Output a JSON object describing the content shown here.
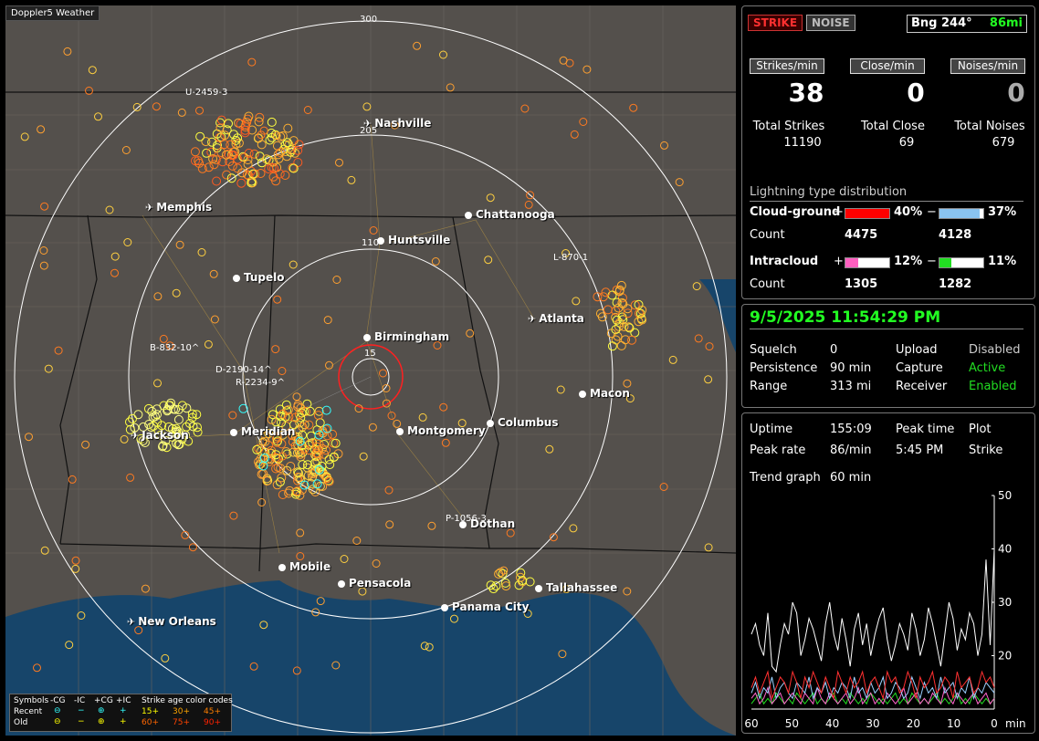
{
  "app": {
    "title": "Doppler5 Weather"
  },
  "map": {
    "ring_labels": [
      "300",
      "205",
      "110",
      "15"
    ],
    "cities": [
      {
        "name": "Nashville",
        "airport": true
      },
      {
        "name": "Memphis",
        "airport": true
      },
      {
        "name": "Chattanooga",
        "airport": false
      },
      {
        "name": "Huntsville",
        "airport": false
      },
      {
        "name": "Tupelo",
        "airport": false
      },
      {
        "name": "Atlanta",
        "airport": true
      },
      {
        "name": "Birmingham",
        "airport": false
      },
      {
        "name": "Macon",
        "airport": false
      },
      {
        "name": "Jackson",
        "airport": true
      },
      {
        "name": "Meridian",
        "airport": false
      },
      {
        "name": "Montgomery",
        "airport": false
      },
      {
        "name": "Columbus",
        "airport": false
      },
      {
        "name": "Dothan",
        "airport": false
      },
      {
        "name": "Mobile",
        "airport": false
      },
      {
        "name": "Pensacola",
        "airport": false
      },
      {
        "name": "Tallahassee",
        "airport": false
      },
      {
        "name": "Panama City",
        "airport": false
      },
      {
        "name": "New Orleans",
        "airport": true
      }
    ],
    "storm_labels": [
      "U-2459-3",
      "L-870-1",
      "B-832-10^",
      "D-2190-14^",
      "R-2234-9^",
      "P-1056-3"
    ]
  },
  "legend": {
    "header": [
      "Symbols",
      "-CG",
      "-IC",
      "+CG",
      "+IC",
      "Strike age color codes"
    ],
    "recent_label": "Recent",
    "old_label": "Old",
    "recent_ages": [
      "15+",
      "30+",
      "45+"
    ],
    "old_ages": [
      "60+",
      "75+",
      "90+"
    ],
    "colors": {
      "15": "#ffff00",
      "30": "#ffa500",
      "45": "#ff7f00",
      "60": "#ff6600",
      "75": "#ff4400",
      "90": "#ff2200"
    }
  },
  "status": {
    "strike_button": "STRIKE",
    "noise_button": "NOISE",
    "bearing_label": "Bng 244°",
    "distance": "86mi",
    "rates": [
      {
        "label": "Strikes/min",
        "value": "38"
      },
      {
        "label": "Close/min",
        "value": "0"
      },
      {
        "label": "Noises/min",
        "value": "0"
      }
    ],
    "totals": [
      {
        "label": "Total Strikes",
        "value": "11190"
      },
      {
        "label": "Total Close",
        "value": "69"
      },
      {
        "label": "Total Noises",
        "value": "679"
      }
    ],
    "distribution_title": "Lightning type distribution",
    "cloud_ground_label": "Cloud-ground",
    "intracloud_label": "Intracloud",
    "count_label": "Count",
    "plus_sign": "+",
    "minus_sign": "−",
    "cg_pos": {
      "percent": "40%",
      "count": "4475",
      "fraction": 0.4,
      "color": "#ff0000"
    },
    "cg_neg": {
      "percent": "37%",
      "count": "4128",
      "fraction": 0.37,
      "color": "#8ac4f0"
    },
    "ic_pos": {
      "percent": "12%",
      "count": "1305",
      "fraction": 0.12,
      "color": "#ff5fc0"
    },
    "ic_neg": {
      "percent": "11%",
      "count": "1282",
      "fraction": 0.11,
      "color": "#22dd22"
    }
  },
  "config": {
    "datetime": "9/5/2025 11:54:29 PM",
    "rows": [
      {
        "k1": "Squelch",
        "v1": "0",
        "k2": "Upload",
        "v2": "Disabled"
      },
      {
        "k1": "Persistence",
        "v1": "90 min",
        "k2": "Capture",
        "v2": "Active"
      },
      {
        "k1": "Range",
        "v1": "313 mi",
        "k2": "Receiver",
        "v2": "Enabled"
      }
    ],
    "colors": {
      "datetime": "#22ff22",
      "active": "#22dd22",
      "disabled": "#cccccc"
    }
  },
  "trend": {
    "uptime_label": "Uptime",
    "uptime_value": "155:09",
    "peak_time_label": "Peak time",
    "peak_time_value": "5:45 PM",
    "plot_label": "Plot",
    "plot_value": "Strike",
    "peak_rate_label": "Peak rate",
    "peak_rate_value": "86/min",
    "trend_label": "Trend graph",
    "trend_value": "60 min"
  },
  "chart_data": {
    "type": "line",
    "x_ticks": [
      "60",
      "50",
      "40",
      "30",
      "20",
      "10",
      "0"
    ],
    "x_unit": "min",
    "y_ticks": [
      "50",
      "40",
      "30",
      "20"
    ],
    "ylim": [
      10,
      50
    ],
    "xlim": [
      60,
      0
    ],
    "series": [
      {
        "color": "#ffffff",
        "values": [
          24,
          26,
          22,
          20,
          28,
          18,
          17,
          22,
          26,
          24,
          30,
          28,
          20,
          23,
          27,
          25,
          22,
          19,
          26,
          30,
          24,
          21,
          27,
          23,
          18,
          25,
          28,
          22,
          26,
          20,
          24,
          27,
          29,
          23,
          19,
          22,
          26,
          24,
          21,
          28,
          25,
          20,
          23,
          29,
          26,
          22,
          18,
          24,
          30,
          27,
          21,
          25,
          23,
          28,
          26,
          20,
          24,
          38,
          22,
          40
        ]
      },
      {
        "color": "#ff3030",
        "values": [
          14,
          16,
          13,
          15,
          17,
          12,
          14,
          16,
          15,
          13,
          17,
          15,
          12,
          16,
          14,
          17,
          15,
          13,
          16,
          14,
          12,
          17,
          15,
          13,
          16,
          14,
          15,
          17,
          13,
          15,
          16,
          14,
          12,
          17,
          15,
          16,
          13,
          14,
          17,
          15,
          12,
          16,
          14,
          15,
          17,
          13,
          14,
          16,
          15,
          12,
          17,
          14,
          15,
          16,
          13,
          14,
          17,
          15,
          16,
          14
        ]
      },
      {
        "color": "#9ad0ff",
        "values": [
          13,
          15,
          12,
          14,
          13,
          16,
          12,
          14,
          15,
          13,
          12,
          15,
          14,
          13,
          16,
          12,
          14,
          13,
          15,
          12,
          14,
          13,
          15,
          14,
          12,
          16,
          13,
          14,
          12,
          15,
          13,
          14,
          16,
          12,
          13,
          15,
          14,
          12,
          13,
          16,
          14,
          12,
          15,
          13,
          14,
          12,
          16,
          13,
          14,
          15,
          12,
          14,
          13,
          16,
          12,
          14,
          13,
          15,
          14,
          13
        ]
      },
      {
        "color": "#ff66cc",
        "values": [
          12,
          13,
          11,
          12,
          14,
          11,
          12,
          13,
          11,
          12,
          13,
          12,
          11,
          13,
          12,
          11,
          14,
          12,
          11,
          13,
          12,
          11,
          12,
          13,
          11,
          12,
          14,
          11,
          12,
          13,
          11,
          12,
          11,
          13,
          12,
          11,
          12,
          14,
          11,
          12,
          13,
          11,
          12,
          11,
          13,
          12,
          11,
          14,
          12,
          11,
          13,
          12,
          11,
          12,
          13,
          11,
          12,
          13,
          11,
          12
        ]
      },
      {
        "color": "#22dd22",
        "values": [
          11,
          12,
          13,
          11,
          12,
          11,
          13,
          12,
          11,
          12,
          11,
          13,
          12,
          11,
          12,
          13,
          11,
          12,
          11,
          12,
          13,
          11,
          12,
          11,
          13,
          12,
          11,
          12,
          11,
          13,
          12,
          11,
          12,
          11,
          12,
          13,
          11,
          12,
          11,
          13,
          12,
          11,
          12,
          11,
          12,
          13,
          11,
          12,
          11,
          12,
          13,
          11,
          12,
          11,
          13,
          12,
          11,
          12,
          11,
          12
        ]
      }
    ]
  }
}
